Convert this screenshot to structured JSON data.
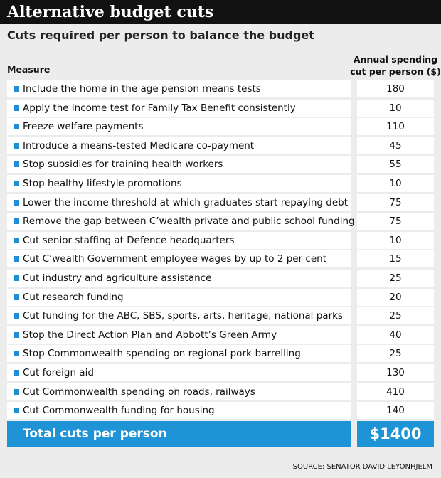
{
  "header": {
    "title": "Alternative budget cuts",
    "subtitle": "Cuts required per person to balance the budget"
  },
  "table": {
    "columns": [
      "Measure",
      "Annual spending cut per person ($)"
    ],
    "rows": [
      [
        "Include the home in the age pension means tests",
        180
      ],
      [
        "Apply the income test for Family Tax Benefit consistently",
        10
      ],
      [
        "Freeze welfare payments",
        110
      ],
      [
        "Introduce a means-tested Medicare co-payment",
        45
      ],
      [
        "Stop subsidies for training health workers",
        55
      ],
      [
        "Stop healthy lifestyle promotions",
        10
      ],
      [
        "Lower the income threshold at which graduates start repaying debt",
        75
      ],
      [
        "Remove the gap between C’wealth private and public school funding",
        75
      ],
      [
        "Cut senior staffing at Defence headquarters",
        10
      ],
      [
        "Cut C’wealth Government employee wages by up to  2 per cent",
        15
      ],
      [
        "Cut industry and agriculture assistance",
        25
      ],
      [
        "Cut research funding",
        20
      ],
      [
        "Cut funding for the ABC, SBS, sports, arts, heritage, national parks",
        25
      ],
      [
        "Stop the Direct Action Plan and Abbott’s Green Army",
        40
      ],
      [
        "Stop Commonwealth spending on regional pork-barrelling",
        25
      ],
      [
        "Cut foreign aid",
        130
      ],
      [
        "Cut Commonwealth spending on roads, railways",
        410
      ],
      [
        "Cut Commonwealth funding for housing",
        140
      ]
    ],
    "total": [
      "Total cuts per person",
      "$1400"
    ]
  },
  "source": "SOURCE: SENATOR DAVID LEYONHJELM"
}
